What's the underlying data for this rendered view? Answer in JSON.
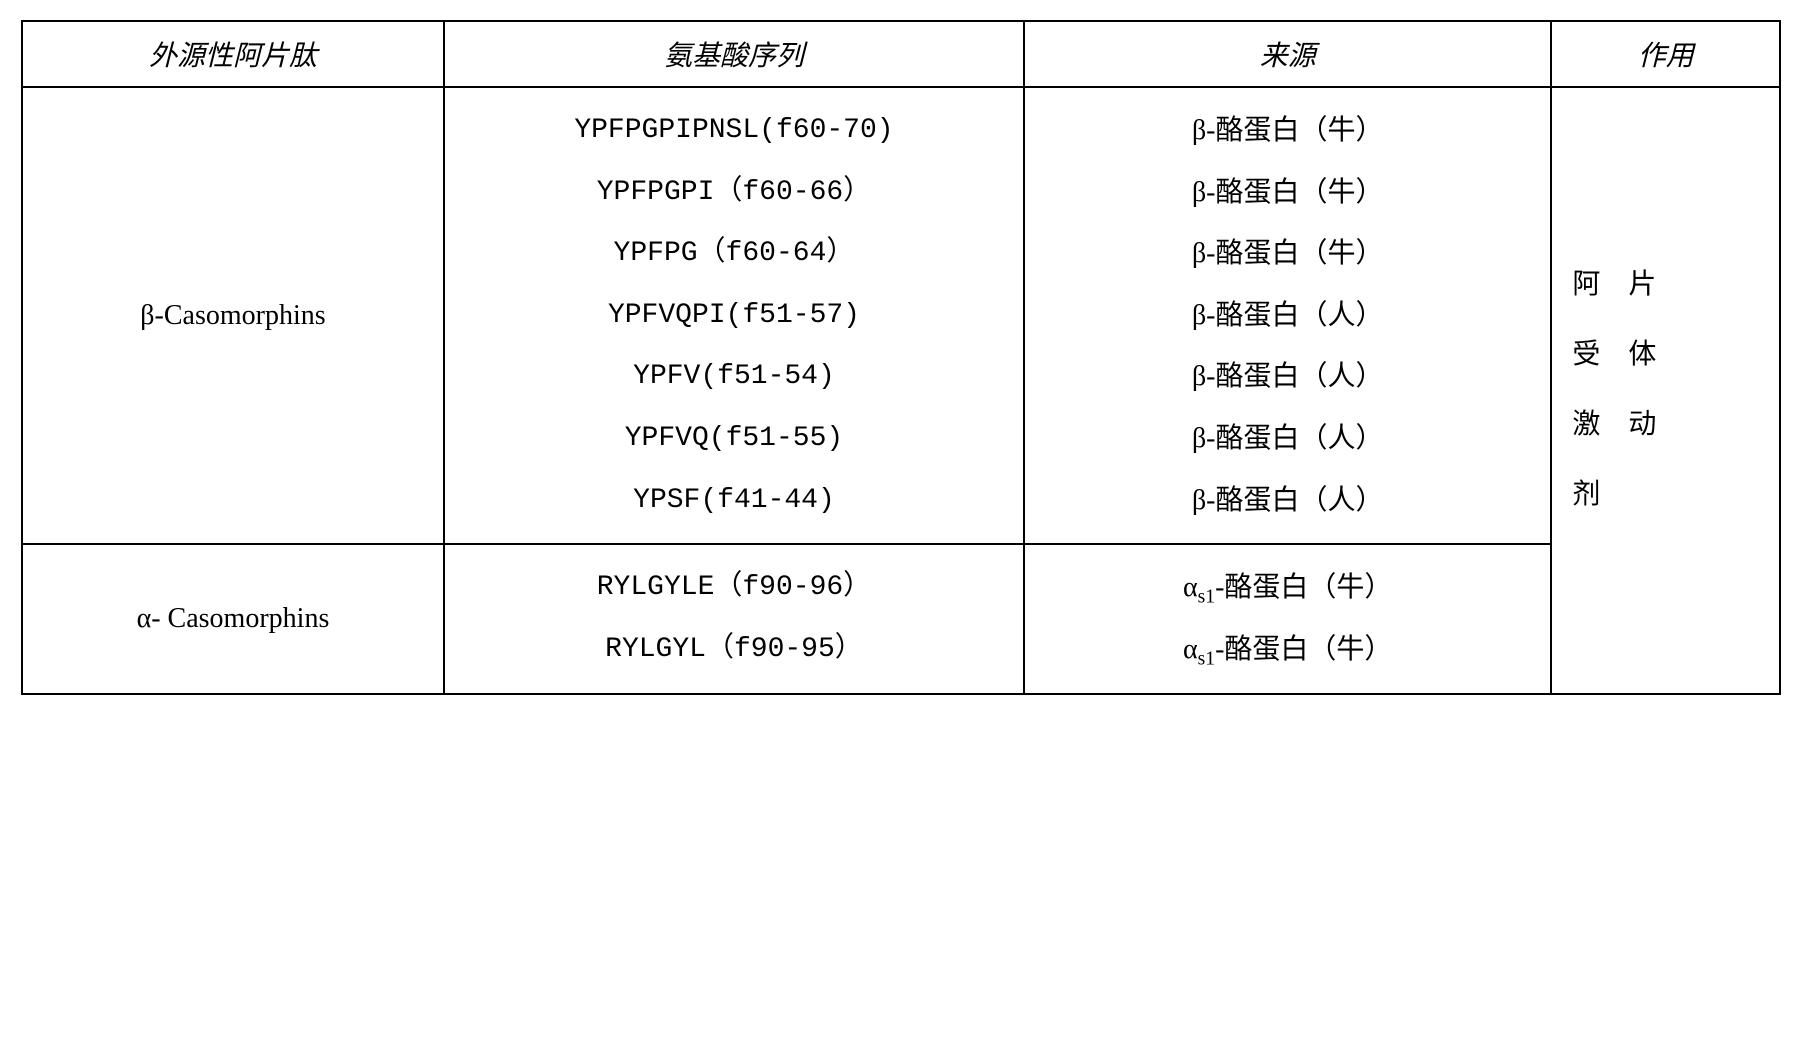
{
  "table": {
    "headers": {
      "col1": "外源性阿片肽",
      "col2": "氨基酸序列",
      "col3": "来源",
      "col4": "作用"
    },
    "rows": [
      {
        "peptide": "β-Casomorphins",
        "sequences": [
          "YPFPGPIPNSL(f60-70)",
          "YPFPGPI（f60-66）",
          "YPFPG（f60-64）",
          "YPFVQPI(f51-57)",
          "YPFV(f51-54)",
          "YPFVQ(f51-55)",
          "YPSF(f41-44)"
        ],
        "sources": [
          "β-酪蛋白（牛）",
          "β-酪蛋白（牛）",
          "β-酪蛋白（牛）",
          "β-酪蛋白（人）",
          "β-酪蛋白（人）",
          "β-酪蛋白（人）",
          "β-酪蛋白（人）"
        ]
      },
      {
        "peptide": "α- Casomorphins",
        "sequences": [
          "RYLGYLE（f90-96）",
          "RYLGYL（f90-95）"
        ],
        "sources_prefix": "α",
        "sources_sub": "s1",
        "sources_suffix": "-酪蛋白（牛）",
        "source_count": 2
      }
    ],
    "effect": {
      "line1": "阿　片",
      "line2": "受　体",
      "line3": "激　动",
      "line4": "剂"
    }
  },
  "styling": {
    "border_color": "#000000",
    "border_width": 2,
    "background_color": "#ffffff",
    "header_font": "KaiTi",
    "sequence_font": "Courier New",
    "body_font": "SimSun",
    "font_size": 28,
    "line_height": 2.2
  }
}
